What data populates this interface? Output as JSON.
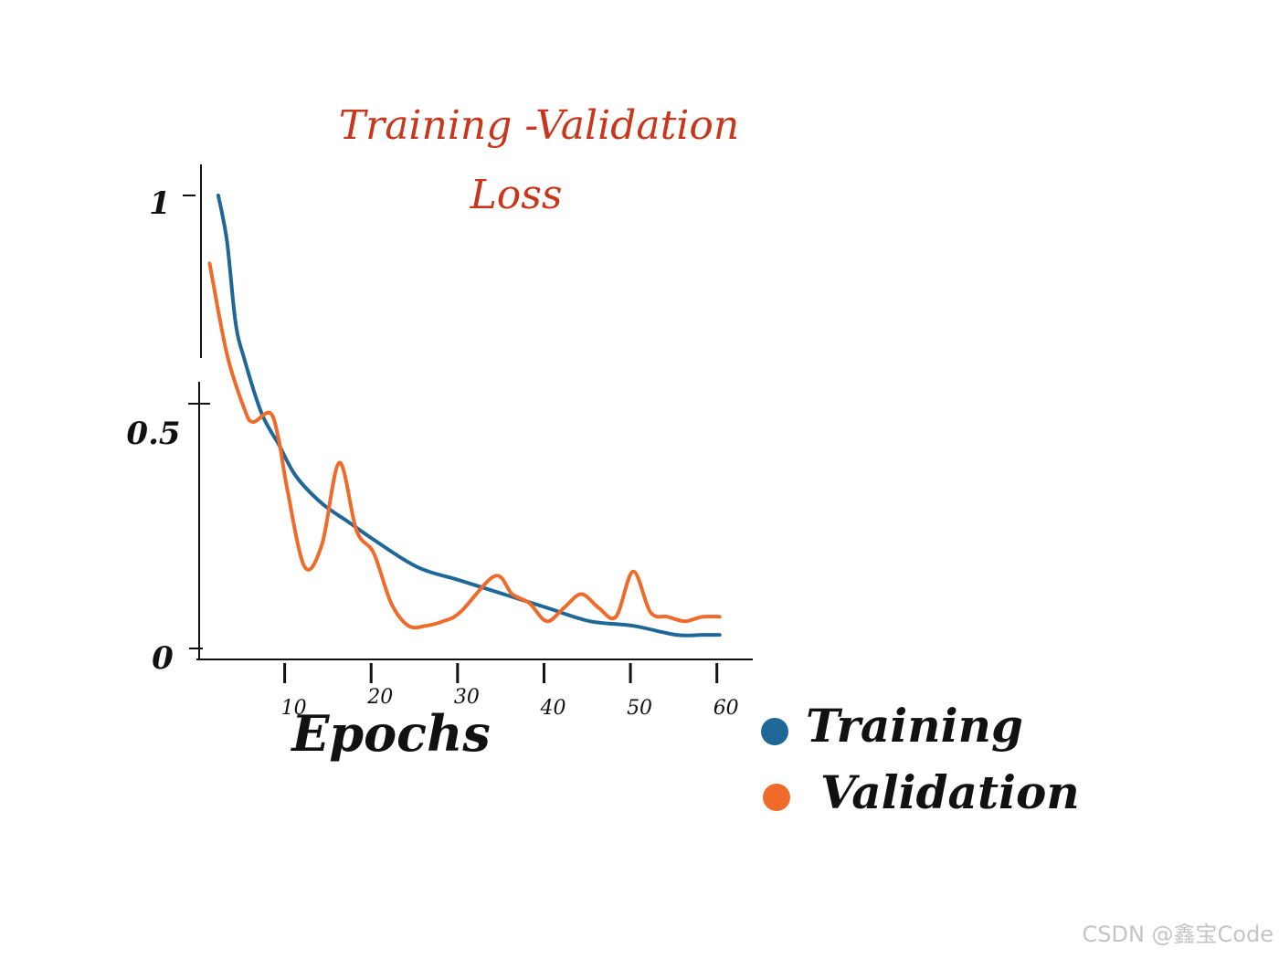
{
  "chart_data": {
    "type": "line",
    "title": "Training -Validation",
    "subtitle": "Loss",
    "xlabel": "Epochs",
    "ylabel": "",
    "xlim": [
      0,
      65
    ],
    "ylim": [
      0,
      1
    ],
    "x_ticks": [
      "10",
      "20",
      "30",
      "40",
      "50",
      "60"
    ],
    "y_ticks": [
      "1",
      "0.5",
      "0"
    ],
    "legend_position": "bottom-right",
    "series": [
      {
        "name": "Training",
        "color": "#1f6796",
        "x": [
          2,
          3,
          4,
          5,
          7,
          9,
          11,
          14,
          17,
          20,
          25,
          30,
          35,
          40,
          45,
          50,
          55,
          58,
          60
        ],
        "y": [
          1.0,
          0.9,
          0.72,
          0.64,
          0.52,
          0.45,
          0.38,
          0.32,
          0.28,
          0.24,
          0.18,
          0.15,
          0.12,
          0.09,
          0.06,
          0.05,
          0.03,
          0.03,
          0.03
        ]
      },
      {
        "name": "Validation",
        "color": "#f06a2a",
        "x": [
          1,
          3,
          5,
          6,
          8,
          9,
          10,
          12,
          14,
          16,
          18,
          20,
          22,
          24,
          26,
          28,
          30,
          34,
          36,
          38,
          40,
          42,
          44,
          46,
          48,
          50,
          52,
          54,
          56,
          58,
          60
        ],
        "y": [
          0.85,
          0.65,
          0.53,
          0.5,
          0.52,
          0.46,
          0.35,
          0.18,
          0.23,
          0.41,
          0.26,
          0.21,
          0.1,
          0.05,
          0.05,
          0.06,
          0.08,
          0.16,
          0.12,
          0.1,
          0.06,
          0.09,
          0.12,
          0.09,
          0.07,
          0.17,
          0.08,
          0.07,
          0.06,
          0.07,
          0.07
        ]
      }
    ]
  },
  "watermark": "CSDN @鑫宝Code"
}
